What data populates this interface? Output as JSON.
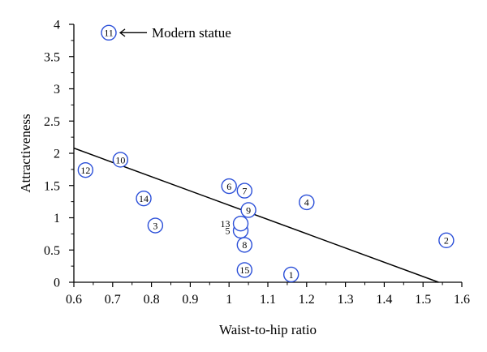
{
  "chart_data": {
    "type": "scatter",
    "title": "",
    "xlabel": "Waist-to-hip ratio",
    "ylabel": "Attractiveness",
    "xlim": [
      0.6,
      1.6
    ],
    "ylim": [
      0,
      4
    ],
    "xticks": [
      "0.6",
      "0.7",
      "0.8",
      "0.9",
      "1",
      "1.1",
      "1.2",
      "1.3",
      "1.4",
      "1.5",
      "1.6"
    ],
    "yticks": [
      "0",
      "0.5",
      "1",
      "1.5",
      "2",
      "2.5",
      "3",
      "3.5",
      "4"
    ],
    "grid": false,
    "marker_color": "#2b4fd8",
    "points": [
      {
        "label": "1",
        "x": 1.16,
        "y": 0.12,
        "label_inside": true
      },
      {
        "label": "2",
        "x": 1.56,
        "y": 0.65,
        "label_inside": true
      },
      {
        "label": "3",
        "x": 0.81,
        "y": 0.88,
        "label_inside": true
      },
      {
        "label": "4",
        "x": 1.2,
        "y": 1.24,
        "label_inside": true
      },
      {
        "label": "5",
        "x": 1.03,
        "y": 0.8,
        "label_inside": false
      },
      {
        "label": "6",
        "x": 1.0,
        "y": 1.49,
        "label_inside": true
      },
      {
        "label": "7",
        "x": 1.04,
        "y": 1.42,
        "label_inside": true
      },
      {
        "label": "8",
        "x": 1.04,
        "y": 0.58,
        "label_inside": true
      },
      {
        "label": "9",
        "x": 1.05,
        "y": 1.12,
        "label_inside": true
      },
      {
        "label": "10",
        "x": 0.72,
        "y": 1.9,
        "label_inside": true
      },
      {
        "label": "11",
        "x": 0.69,
        "y": 3.87,
        "label_inside": true
      },
      {
        "label": "12",
        "x": 0.63,
        "y": 1.74,
        "label_inside": true
      },
      {
        "label": "13",
        "x": 1.03,
        "y": 0.91,
        "label_inside": false
      },
      {
        "label": "14",
        "x": 0.78,
        "y": 1.3,
        "label_inside": true
      },
      {
        "label": "15",
        "x": 1.04,
        "y": 0.19,
        "label_inside": true
      }
    ],
    "trend_line": {
      "x": [
        0.6,
        1.54
      ],
      "y": [
        2.08,
        0.0
      ]
    },
    "annotation": {
      "text": "Modern statue",
      "point": "11"
    }
  }
}
